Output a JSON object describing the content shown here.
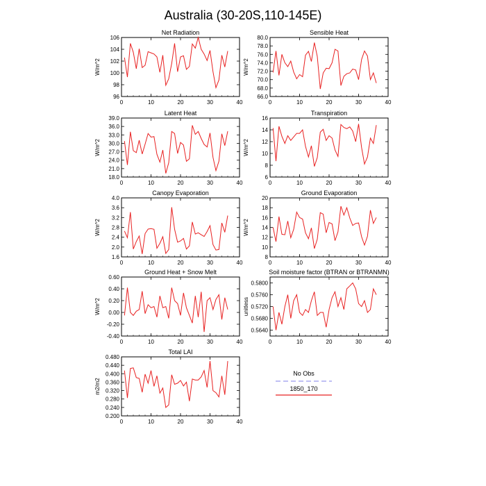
{
  "page": {
    "title": "Australia (30-20S,110-145E)"
  },
  "legend": {
    "placement": "bottom-right",
    "entries": [
      {
        "name": "No Obs",
        "color": "#9999ee",
        "dash": true
      },
      {
        "name": "1850_170",
        "color": "#e82020",
        "dash": false
      }
    ]
  },
  "chart_data": [
    {
      "type": "line",
      "title": "Net Radiation",
      "ylabel": "W/m^2",
      "xlim": [
        0,
        40
      ],
      "ylim": [
        96,
        106
      ],
      "xticks": [
        "0",
        "10",
        "20",
        "30",
        "40"
      ],
      "yticks": [
        "96",
        "98",
        "100",
        "102",
        "104",
        "106"
      ],
      "x": [
        1,
        2,
        3,
        4,
        5,
        6,
        7,
        8,
        9,
        10,
        11,
        12,
        13,
        14,
        15,
        16,
        17,
        18,
        19,
        20,
        21,
        22,
        23,
        24,
        25,
        26,
        27,
        28,
        29,
        30,
        31,
        32,
        33,
        34,
        35,
        36
      ],
      "series": [
        {
          "color": "#e82020",
          "values": [
            102.6,
            99.3,
            105.0,
            103.5,
            100.7,
            104.1,
            100.9,
            101.3,
            103.6,
            103.4,
            103.2,
            102.7,
            100.1,
            103.0,
            97.9,
            99.0,
            101.6,
            105.0,
            100.2,
            102.7,
            102.9,
            100.6,
            101.1,
            104.9,
            104.2,
            106.0,
            104.0,
            103.2,
            102.1,
            103.8,
            100.2,
            97.5,
            98.8,
            103.0,
            101.0,
            103.7
          ]
        }
      ]
    },
    {
      "type": "line",
      "title": "Sensible Heat",
      "ylabel": "W/m^2",
      "xlim": [
        0,
        40
      ],
      "ylim": [
        66,
        80
      ],
      "xticks": [
        "0",
        "10",
        "20",
        "30",
        "40"
      ],
      "yticks": [
        "66.0",
        "68.0",
        "70.0",
        "72.0",
        "74.0",
        "76.0",
        "78.0",
        "80.0"
      ],
      "x": [
        1,
        2,
        3,
        4,
        5,
        6,
        7,
        8,
        9,
        10,
        11,
        12,
        13,
        14,
        15,
        16,
        17,
        18,
        19,
        20,
        21,
        22,
        23,
        24,
        25,
        26,
        27,
        28,
        29,
        30,
        31,
        32,
        33,
        34,
        35,
        36
      ],
      "series": [
        {
          "color": "#e82020",
          "values": [
            71.7,
            76.8,
            71.0,
            76.0,
            74.0,
            73.1,
            74.4,
            71.8,
            70.2,
            71.2,
            70.7,
            75.8,
            76.7,
            74.3,
            78.8,
            75.5,
            67.8,
            71.6,
            72.7,
            72.6,
            74.0,
            77.2,
            76.8,
            68.6,
            70.8,
            71.4,
            71.6,
            72.5,
            72.3,
            70.0,
            74.8,
            76.8,
            75.6,
            70.0,
            71.6,
            69.2
          ]
        }
      ]
    },
    {
      "type": "line",
      "title": "Latent Heat",
      "ylabel": "W/m^2",
      "xlim": [
        0,
        40
      ],
      "ylim": [
        18,
        39
      ],
      "xticks": [
        "0",
        "10",
        "20",
        "30",
        "40"
      ],
      "yticks": [
        "18.0",
        "21.0",
        "24.0",
        "27.0",
        "30.0",
        "33.0",
        "36.0",
        "39.0"
      ],
      "x": [
        1,
        2,
        3,
        4,
        5,
        6,
        7,
        8,
        9,
        10,
        11,
        12,
        13,
        14,
        15,
        16,
        17,
        18,
        19,
        20,
        21,
        22,
        23,
        24,
        25,
        26,
        27,
        28,
        29,
        30,
        31,
        32,
        33,
        34,
        35,
        36
      ],
      "series": [
        {
          "color": "#e82020",
          "values": [
            30.8,
            22.3,
            34.1,
            27.4,
            26.7,
            31.1,
            26.2,
            29.7,
            33.5,
            32.2,
            32.4,
            26.1,
            23.3,
            27.6,
            19.3,
            23.1,
            34.2,
            33.5,
            26.4,
            30.3,
            29.4,
            23.6,
            24.5,
            36.4,
            33.2,
            34.2,
            31.7,
            29.6,
            28.7,
            33.7,
            25.0,
            20.3,
            23.6,
            33.4,
            29.2,
            34.3
          ]
        }
      ]
    },
    {
      "type": "line",
      "title": "Transpiration",
      "ylabel": "W/m^2",
      "xlim": [
        0,
        40
      ],
      "ylim": [
        6,
        16
      ],
      "xticks": [
        "0",
        "10",
        "20",
        "30",
        "40"
      ],
      "yticks": [
        "6",
        "8",
        "10",
        "12",
        "14",
        "16"
      ],
      "x": [
        1,
        2,
        3,
        4,
        5,
        6,
        7,
        8,
        9,
        10,
        11,
        12,
        13,
        14,
        15,
        16,
        17,
        18,
        19,
        20,
        21,
        22,
        23,
        24,
        25,
        26,
        27,
        28,
        29,
        30,
        31,
        32,
        33,
        34,
        35,
        36
      ],
      "series": [
        {
          "color": "#e82020",
          "values": [
            14.3,
            8.7,
            14.6,
            12.9,
            11.7,
            13.0,
            12.2,
            12.8,
            13.4,
            13.4,
            14.0,
            11.2,
            9.4,
            11.3,
            7.8,
            9.3,
            13.6,
            14.1,
            12.2,
            13.0,
            12.6,
            10.6,
            9.5,
            14.9,
            14.4,
            14.2,
            14.5,
            13.8,
            12.0,
            15.0,
            11.0,
            8.2,
            9.4,
            12.6,
            11.7,
            14.8
          ]
        }
      ]
    },
    {
      "type": "line",
      "title": "Canopy Evaporation",
      "ylabel": "W/m^2",
      "xlim": [
        0,
        40
      ],
      "ylim": [
        1.6,
        4.0
      ],
      "xticks": [
        "0",
        "10",
        "20",
        "30",
        "40"
      ],
      "yticks": [
        "1.6",
        "2.0",
        "2.4",
        "2.8",
        "3.2",
        "3.6",
        "4.0"
      ],
      "x": [
        1,
        2,
        3,
        4,
        5,
        6,
        7,
        8,
        9,
        10,
        11,
        12,
        13,
        14,
        15,
        16,
        17,
        18,
        19,
        20,
        21,
        22,
        23,
        24,
        25,
        26,
        27,
        28,
        29,
        30,
        31,
        32,
        33,
        34,
        35,
        36
      ],
      "series": [
        {
          "color": "#e82020",
          "values": [
            2.65,
            2.38,
            3.42,
            1.92,
            2.22,
            2.45,
            1.72,
            2.55,
            2.73,
            2.75,
            2.72,
            1.95,
            2.15,
            2.42,
            1.74,
            1.9,
            3.62,
            2.72,
            2.2,
            2.25,
            2.35,
            1.92,
            2.05,
            3.02,
            2.53,
            2.58,
            2.5,
            2.43,
            2.63,
            2.87,
            2.1,
            1.88,
            1.9,
            2.98,
            2.6,
            3.28
          ]
        }
      ]
    },
    {
      "type": "line",
      "title": "Ground Evaporation",
      "ylabel": "W/m^2",
      "xlim": [
        0,
        40
      ],
      "ylim": [
        8,
        20
      ],
      "xticks": [
        "0",
        "10",
        "20",
        "30",
        "40"
      ],
      "yticks": [
        "8",
        "10",
        "12",
        "14",
        "16",
        "18",
        "20"
      ],
      "x": [
        1,
        2,
        3,
        4,
        5,
        6,
        7,
        8,
        9,
        10,
        11,
        12,
        13,
        14,
        15,
        16,
        17,
        18,
        19,
        20,
        21,
        22,
        23,
        24,
        25,
        26,
        27,
        28,
        29,
        30,
        31,
        32,
        33,
        34,
        35,
        36
      ],
      "series": [
        {
          "color": "#e82020",
          "values": [
            14.0,
            11.1,
            16.2,
            12.6,
            12.5,
            15.3,
            11.9,
            13.6,
            17.1,
            16.0,
            15.7,
            12.9,
            11.7,
            13.9,
            9.7,
            11.6,
            17.0,
            16.7,
            12.9,
            15.0,
            14.7,
            11.3,
            13.1,
            18.3,
            16.5,
            18.0,
            15.9,
            14.4,
            14.8,
            14.9,
            12.1,
            10.4,
            12.2,
            17.5,
            14.8,
            16.0
          ]
        }
      ]
    },
    {
      "type": "line",
      "title": "Ground Heat + Snow Melt",
      "ylabel": "W/m^2",
      "xlim": [
        0,
        40
      ],
      "ylim": [
        -0.4,
        0.6
      ],
      "xticks": [
        "0",
        "10",
        "20",
        "30",
        "40"
      ],
      "yticks": [
        "-0.40",
        "-0.20",
        "0.00",
        "0.20",
        "0.40",
        "0.60"
      ],
      "x": [
        1,
        2,
        3,
        4,
        5,
        6,
        7,
        8,
        9,
        10,
        11,
        12,
        13,
        14,
        15,
        16,
        17,
        18,
        19,
        20,
        21,
        22,
        23,
        24,
        25,
        26,
        27,
        28,
        29,
        30,
        31,
        32,
        33,
        34,
        35,
        36
      ],
      "series": [
        {
          "color": "#e82020",
          "values": [
            -0.05,
            0.42,
            0.0,
            -0.05,
            0.02,
            0.05,
            0.36,
            -0.02,
            0.13,
            0.08,
            0.1,
            -0.08,
            0.28,
            0.08,
            0.1,
            -0.1,
            0.42,
            0.2,
            0.15,
            -0.05,
            0.33,
            0.08,
            -0.05,
            -0.18,
            0.28,
            -0.08,
            0.35,
            -0.33,
            0.2,
            0.25,
            0.05,
            0.22,
            0.3,
            -0.12,
            0.25,
            0.05
          ]
        }
      ]
    },
    {
      "type": "line",
      "title": "Soil moisture factor (BTRAN or BTRANMN)",
      "ylabel": "unitless",
      "xlim": [
        0,
        40
      ],
      "ylim": [
        0.562,
        0.582
      ],
      "xticks": [
        "0",
        "10",
        "20",
        "30",
        "40"
      ],
      "yticks": [
        "0.5640",
        "0.5680",
        "0.5720",
        "0.5760",
        "0.5800"
      ],
      "x": [
        1,
        2,
        3,
        4,
        5,
        6,
        7,
        8,
        9,
        10,
        11,
        12,
        13,
        14,
        15,
        16,
        17,
        18,
        19,
        20,
        21,
        22,
        23,
        24,
        25,
        26,
        27,
        28,
        29,
        30,
        31,
        32,
        33,
        34,
        35,
        36
      ],
      "series": [
        {
          "color": "#e82020",
          "values": [
            0.572,
            0.564,
            0.57,
            0.566,
            0.572,
            0.576,
            0.568,
            0.574,
            0.576,
            0.57,
            0.569,
            0.571,
            0.57,
            0.574,
            0.577,
            0.569,
            0.57,
            0.57,
            0.565,
            0.571,
            0.575,
            0.577,
            0.572,
            0.575,
            0.571,
            0.578,
            0.579,
            0.58,
            0.578,
            0.573,
            0.572,
            0.574,
            0.57,
            0.571,
            0.578,
            0.576
          ]
        }
      ]
    },
    {
      "type": "line",
      "title": "Total LAI",
      "ylabel": "m2/m2",
      "xlim": [
        0,
        40
      ],
      "ylim": [
        0.2,
        0.48
      ],
      "xticks": [
        "0",
        "10",
        "20",
        "30",
        "40"
      ],
      "yticks": [
        "0.200",
        "0.240",
        "0.280",
        "0.320",
        "0.360",
        "0.400",
        "0.440",
        "0.480"
      ],
      "x": [
        1,
        2,
        3,
        4,
        5,
        6,
        7,
        8,
        9,
        10,
        11,
        12,
        13,
        14,
        15,
        16,
        17,
        18,
        19,
        20,
        21,
        22,
        23,
        24,
        25,
        26,
        27,
        28,
        29,
        30,
        31,
        32,
        33,
        34,
        35,
        36
      ],
      "series": [
        {
          "color": "#e82020",
          "values": [
            0.415,
            0.285,
            0.425,
            0.428,
            0.382,
            0.378,
            0.312,
            0.398,
            0.355,
            0.415,
            0.34,
            0.39,
            0.308,
            0.332,
            0.24,
            0.252,
            0.395,
            0.35,
            0.355,
            0.368,
            0.342,
            0.36,
            0.27,
            0.375,
            0.37,
            0.37,
            0.385,
            0.415,
            0.335,
            0.46,
            0.32,
            0.31,
            0.29,
            0.39,
            0.3,
            0.46
          ]
        }
      ]
    }
  ]
}
